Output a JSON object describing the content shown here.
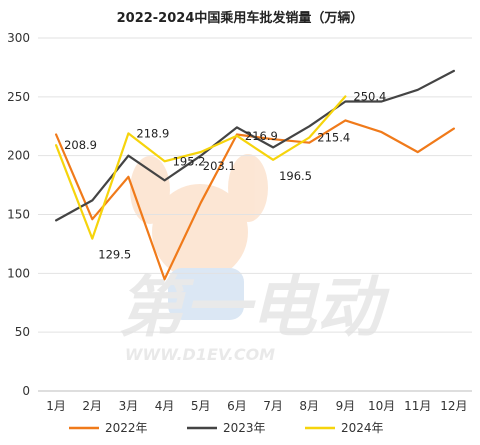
{
  "chart_data": {
    "type": "line",
    "title": "2022-2024中国乘用车批发销量（万辆）",
    "categories": [
      "1月",
      "2月",
      "3月",
      "4月",
      "5月",
      "6月",
      "7月",
      "8月",
      "9月",
      "10月",
      "11月",
      "12月"
    ],
    "ylim": [
      0,
      300
    ],
    "yticks": [
      0,
      50,
      100,
      150,
      200,
      250,
      300
    ],
    "grid": true,
    "legend_position": "bottom",
    "series": [
      {
        "name": "2022年",
        "color": "#F07A1A",
        "values": [
          218,
          146,
          182,
          95,
          160,
          218,
          214,
          211,
          230,
          220,
          203,
          223
        ]
      },
      {
        "name": "2023年",
        "color": "#444444",
        "values": [
          145,
          162,
          200,
          179,
          200,
          224,
          207,
          225,
          246,
          246,
          256,
          272
        ]
      },
      {
        "name": "2024年",
        "color": "#F6D40C",
        "values": [
          208.9,
          129.5,
          218.9,
          195.2,
          203.1,
          216.9,
          196.5,
          215.4,
          250.4,
          null,
          null,
          null
        ]
      }
    ],
    "data_labels": [
      {
        "series": "2024年",
        "index": 0,
        "text": "208.9",
        "placement": "right"
      },
      {
        "series": "2024年",
        "index": 1,
        "text": "129.5",
        "placement": "right-below"
      },
      {
        "series": "2024年",
        "index": 2,
        "text": "218.9",
        "placement": "right"
      },
      {
        "series": "2024年",
        "index": 3,
        "text": "195.2",
        "placement": "right"
      },
      {
        "series": "2024年",
        "index": 4,
        "text": "203.1",
        "placement": "below"
      },
      {
        "series": "2024年",
        "index": 5,
        "text": "216.9",
        "placement": "right"
      },
      {
        "series": "2024年",
        "index": 6,
        "text": "196.5",
        "placement": "right-below"
      },
      {
        "series": "2024年",
        "index": 7,
        "text": "215.4",
        "placement": "right"
      },
      {
        "series": "2024年",
        "index": 8,
        "text": "250.4",
        "placement": "right"
      }
    ]
  },
  "watermark": {
    "brand_text": "第一电动",
    "url_text": "WWW.D1EV.COM"
  }
}
